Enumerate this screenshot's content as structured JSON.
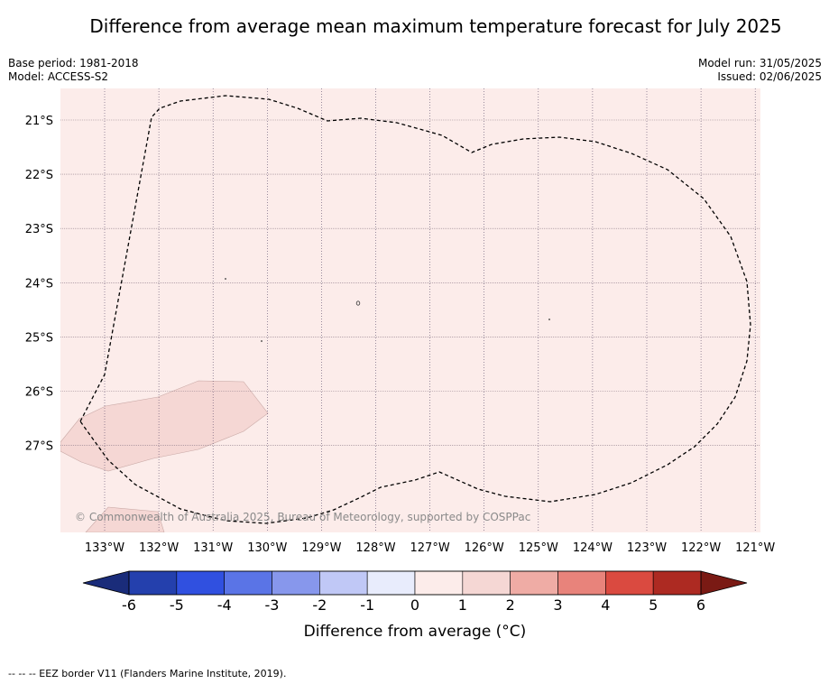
{
  "title": "Difference from average mean maximum temperature forecast for July 2025",
  "header": {
    "base_period": "Base period: 1981-2018",
    "model": "Model: ACCESS-S2",
    "model_run": "Model run: 31/05/2025",
    "issued": "Issued: 02/06/2025"
  },
  "map": {
    "lat_labels": [
      "21°S",
      "22°S",
      "23°S",
      "24°S",
      "25°S",
      "26°S",
      "27°S"
    ],
    "lon_labels": [
      "133°W",
      "132°W",
      "131°W",
      "130°W",
      "129°W",
      "128°W",
      "127°W",
      "126°W",
      "125°W",
      "124°W",
      "123°W",
      "122°W",
      "121°W"
    ],
    "copyright": "© Commonwealth of Australia 2025, Bureau of Meteorology, supported by COSPPac",
    "background_category": "0 to 1",
    "patch_category": "1 to 2"
  },
  "colorbar": {
    "ticks": [
      "-6",
      "-5",
      "-4",
      "-3",
      "-2",
      "-1",
      "0",
      "1",
      "2",
      "3",
      "4",
      "5",
      "6"
    ],
    "colors": [
      "#2440ad",
      "#3050e0",
      "#5a74e6",
      "#8797ec",
      "#c0c8f6",
      "#e8ecfc",
      "#fcecea",
      "#f5d7d4",
      "#efaca5",
      "#e8837b",
      "#da4a40",
      "#ad2a22"
    ],
    "under_color": "#1a2c7a",
    "over_color": "#7a1a14",
    "label": "Difference from average (°C)"
  },
  "footer": "--  --  -- EEZ border V11 (Flanders Marine Institute, 2019)."
}
